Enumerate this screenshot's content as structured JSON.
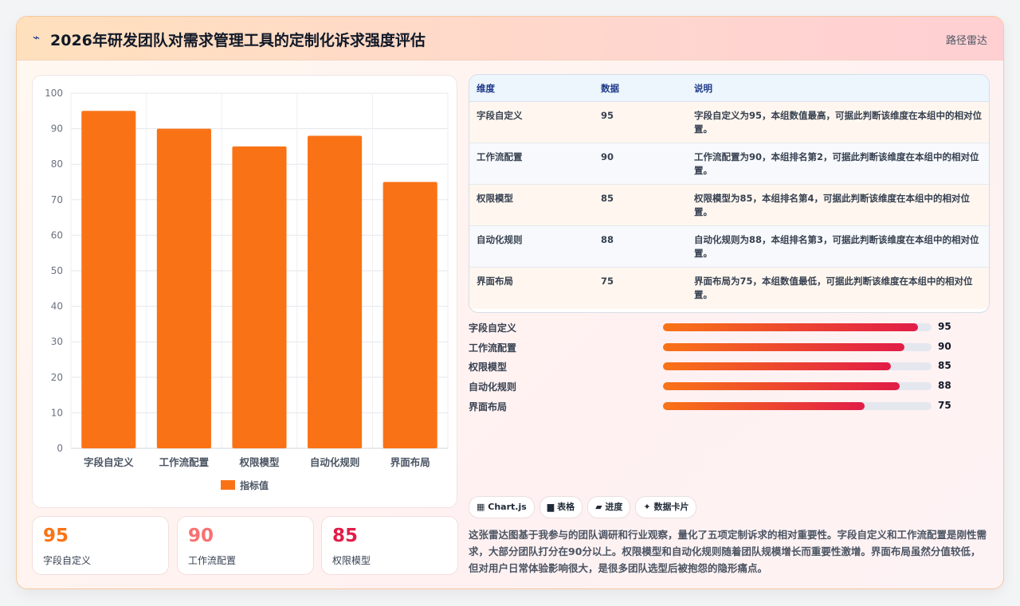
{
  "header": {
    "icon": "trend-icon",
    "title": "2026年研发团队对需求管理工具的定制化诉求强度评估",
    "right_label": "路径雷达"
  },
  "colors": {
    "bar": "#f97316",
    "kpi_1": "#f97316",
    "kpi_2": "#f87171",
    "kpi_3": "#e11d48",
    "progress_start": "#f97316",
    "progress_end": "#e11d48"
  },
  "chart_data": {
    "type": "bar",
    "categories": [
      "字段自定义",
      "工作流配置",
      "权限模型",
      "自动化规则",
      "界面布局"
    ],
    "series": [
      {
        "name": "指标值",
        "values": [
          95,
          90,
          85,
          88,
          75
        ]
      }
    ],
    "ylim": [
      0,
      100
    ],
    "yticks": [
      0,
      10,
      20,
      30,
      40,
      50,
      60,
      70,
      80,
      90,
      100
    ],
    "legend": "bottom",
    "grid": true
  },
  "kpis": [
    {
      "value": "95",
      "label": "字段自定义"
    },
    {
      "value": "90",
      "label": "工作流配置"
    },
    {
      "value": "85",
      "label": "权限模型"
    }
  ],
  "table": {
    "headers": [
      "维度",
      "数据",
      "说明"
    ],
    "rows": [
      {
        "dim": "字段自定义",
        "val": "95",
        "desc": "字段自定义为95，本组数值最高，可据此判断该维度在本组中的相对位置。"
      },
      {
        "dim": "工作流配置",
        "val": "90",
        "desc": "工作流配置为90，本组排名第2，可据此判断该维度在本组中的相对位置。"
      },
      {
        "dim": "权限模型",
        "val": "85",
        "desc": "权限模型为85，本组排名第4，可据此判断该维度在本组中的相对位置。"
      },
      {
        "dim": "自动化规则",
        "val": "88",
        "desc": "自动化规则为88，本组排名第3，可据此判断该维度在本组中的相对位置。"
      },
      {
        "dim": "界面布局",
        "val": "75",
        "desc": "界面布局为75，本组数值最低，可据此判断该维度在本组中的相对位置。"
      }
    ]
  },
  "progress": [
    {
      "label": "字段自定义",
      "value": 95
    },
    {
      "label": "工作流配置",
      "value": 90
    },
    {
      "label": "权限模型",
      "value": 85
    },
    {
      "label": "自动化规则",
      "value": 88
    },
    {
      "label": "界面布局",
      "value": 75
    }
  ],
  "chips": [
    {
      "icon": "grid-icon",
      "glyph": "▦",
      "label": "Chart.js"
    },
    {
      "icon": "table-icon",
      "glyph": "▆",
      "label": "表格"
    },
    {
      "icon": "progress-icon",
      "glyph": "▰",
      "label": "进度"
    },
    {
      "icon": "card-icon",
      "glyph": "✦",
      "label": "数据卡片"
    }
  ],
  "summary": "这张雷达图基于我参与的团队调研和行业观察，量化了五项定制诉求的相对重要性。字段自定义和工作流配置是刚性需求，大部分团队打分在90分以上。权限模型和自动化规则随着团队规模增长而重要性激增。界面布局虽然分值较低，但对用户日常体验影响很大，是很多团队选型后被抱怨的隐形痛点。"
}
